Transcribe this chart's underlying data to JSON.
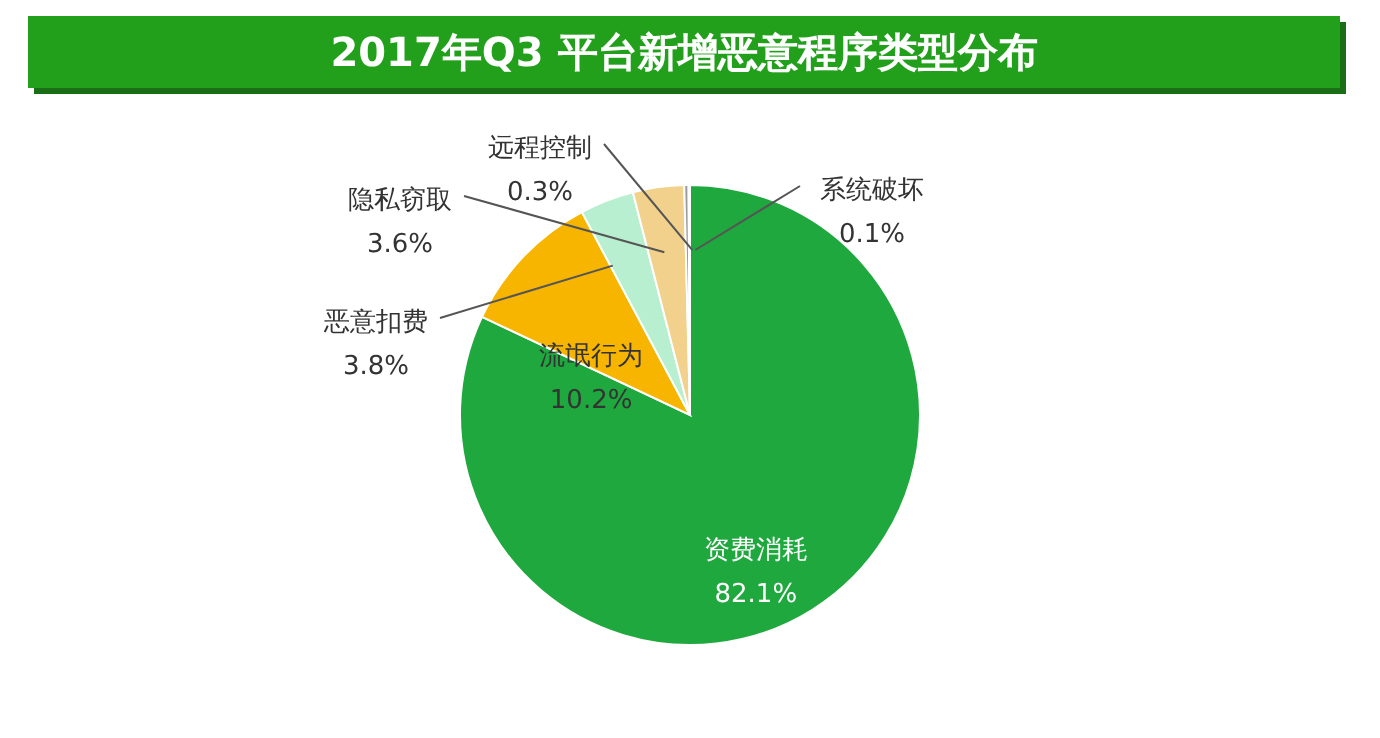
{
  "chart_data": {
    "type": "pie",
    "title": "2017年Q3 平台新增恶意程序类型分布",
    "categories": [
      "资费消耗",
      "流氓行为",
      "恶意扣费",
      "隐私窃取",
      "远程控制",
      "系统破坏"
    ],
    "values": [
      82.1,
      10.2,
      3.8,
      3.6,
      0.3,
      0.1
    ],
    "value_labels": [
      "82.1%",
      "10.2%",
      "3.8%",
      "3.6%",
      "0.3%",
      "0.1%"
    ],
    "colors": [
      "#1fa83e",
      "#f7b500",
      "#b8efd0",
      "#f2d18c",
      "#9a9a9a",
      "#6fa8c8"
    ]
  }
}
